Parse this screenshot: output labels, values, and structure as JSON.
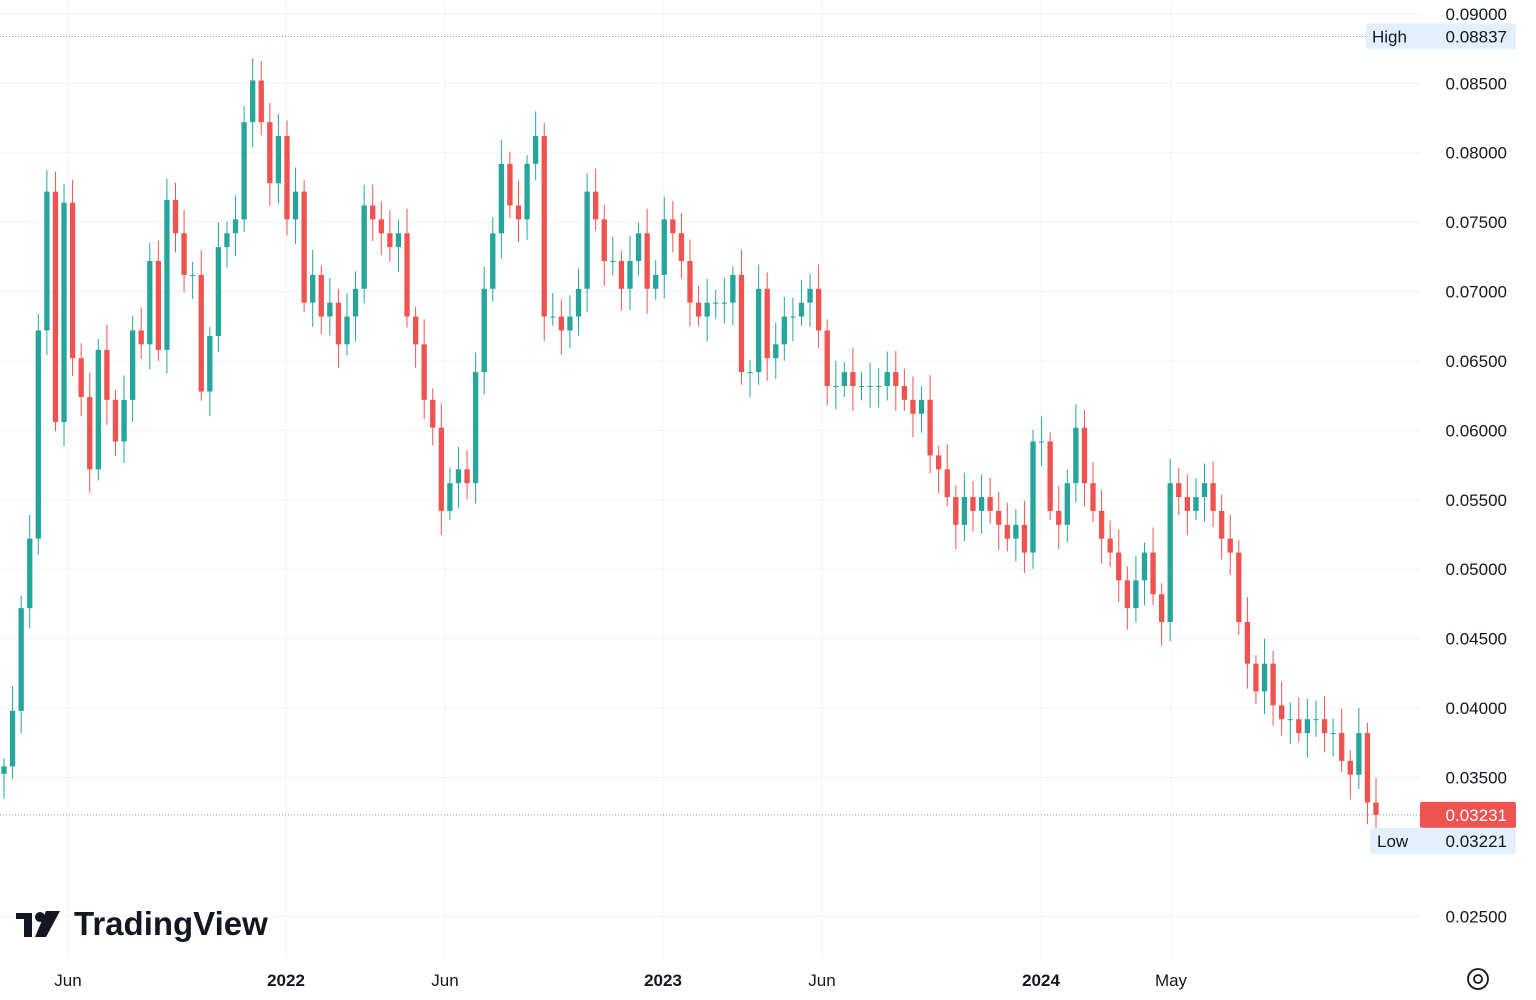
{
  "brand": {
    "name": "TradingView",
    "logo_icon": "tradingview-logo-icon"
  },
  "settings_icon": "settings-gear-icon",
  "colors": {
    "up": "#26a69a",
    "down": "#ef5350",
    "grid": "#f0f3fa",
    "text": "#131722",
    "tag_bg": "#e3effd",
    "last_bg": "#ef5350"
  },
  "chart_data": {
    "type": "candlestick",
    "title": "",
    "xlabel": "",
    "ylabel": "",
    "interval": "1W",
    "ylim": [
      0.022,
      0.091
    ],
    "y_ticks": [
      "0.09000",
      "0.08500",
      "0.08000",
      "0.07500",
      "0.07000",
      "0.06500",
      "0.06000",
      "0.05500",
      "0.05000",
      "0.04500",
      "0.04000",
      "0.03500",
      "0.02500"
    ],
    "x_ticks": [
      {
        "label": "Jun",
        "bold": false
      },
      {
        "label": "2022",
        "bold": true
      },
      {
        "label": "Jun",
        "bold": false
      },
      {
        "label": "2023",
        "bold": true
      },
      {
        "label": "Jun",
        "bold": false
      },
      {
        "label": "2024",
        "bold": true
      },
      {
        "label": "May",
        "bold": false
      }
    ],
    "high": {
      "label": "High",
      "value": "0.08837"
    },
    "low": {
      "label": "Low",
      "value": "0.03221"
    },
    "last": {
      "value": "0.03231"
    },
    "grid": true,
    "closes": [
      0.0358,
      0.0398,
      0.0472,
      0.0522,
      0.0672,
      0.0772,
      0.0606,
      0.0764,
      0.0652,
      0.0624,
      0.0572,
      0.0658,
      0.0622,
      0.0592,
      0.0622,
      0.0672,
      0.0662,
      0.0722,
      0.0658,
      0.0766,
      0.0742,
      0.0712,
      0.0712,
      0.0628,
      0.0668,
      0.0732,
      0.0742,
      0.0752,
      0.0822,
      0.0852,
      0.0822,
      0.0778,
      0.0812,
      0.0752,
      0.0772,
      0.0692,
      0.0712,
      0.0682,
      0.0692,
      0.0662,
      0.0682,
      0.0702,
      0.0762,
      0.0752,
      0.0742,
      0.0732,
      0.0742,
      0.0682,
      0.0662,
      0.0622,
      0.0602,
      0.0542,
      0.0562,
      0.0572,
      0.0562,
      0.0642,
      0.0702,
      0.0742,
      0.0792,
      0.0762,
      0.0752,
      0.0792,
      0.0812,
      0.0682,
      0.0682,
      0.0672,
      0.0682,
      0.0702,
      0.0772,
      0.0752,
      0.0722,
      0.0722,
      0.0702,
      0.0722,
      0.0742,
      0.0702,
      0.0712,
      0.0752,
      0.0742,
      0.0722,
      0.0692,
      0.0682,
      0.0692,
      0.0692,
      0.0692,
      0.0712,
      0.0642,
      0.0642,
      0.0702,
      0.0652,
      0.0662,
      0.0682,
      0.0682,
      0.0692,
      0.0702,
      0.0672,
      0.0632,
      0.0632,
      0.0642,
      0.0632,
      0.0632,
      0.0632,
      0.0632,
      0.0642,
      0.0632,
      0.0622,
      0.0612,
      0.0622,
      0.0582,
      0.0572,
      0.0552,
      0.0532,
      0.0552,
      0.0542,
      0.0552,
      0.0542,
      0.0532,
      0.0522,
      0.0532,
      0.0512,
      0.0592,
      0.0592,
      0.0542,
      0.0532,
      0.0562,
      0.0602,
      0.0562,
      0.0542,
      0.0522,
      0.0512,
      0.0492,
      0.0472,
      0.0492,
      0.0512,
      0.0482,
      0.0462,
      0.0562,
      0.0552,
      0.0542,
      0.0552,
      0.0562,
      0.0542,
      0.0522,
      0.0512,
      0.0462,
      0.0432,
      0.0412,
      0.0432,
      0.0402,
      0.0392,
      0.0392,
      0.0382,
      0.0392,
      0.0392,
      0.0382,
      0.0382,
      0.0362,
      0.0352,
      0.0382,
      0.0332,
      0.0323
    ]
  }
}
